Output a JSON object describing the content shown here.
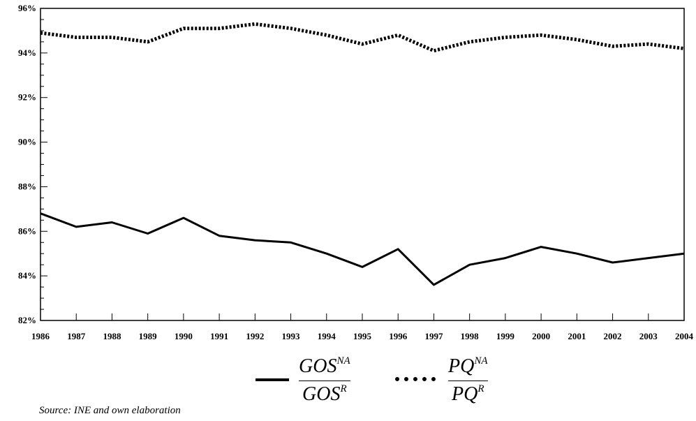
{
  "chart_data": {
    "type": "line",
    "x": [
      "1986",
      "1987",
      "1988",
      "1989",
      "1990",
      "1991",
      "1992",
      "1993",
      "1994",
      "1995",
      "1996",
      "1997",
      "1998",
      "1999",
      "2000",
      "2001",
      "2002",
      "2003",
      "2004"
    ],
    "yticks": [
      "82%",
      "84%",
      "86%",
      "88%",
      "90%",
      "92%",
      "94%",
      "96%"
    ],
    "ylim": [
      82,
      96
    ],
    "series": [
      {
        "name": "GOS",
        "style": "solid",
        "values": [
          86.8,
          86.2,
          86.4,
          85.9,
          86.6,
          85.8,
          85.6,
          85.5,
          85.0,
          84.4,
          85.2,
          83.6,
          84.5,
          84.8,
          85.3,
          85.0,
          84.6,
          84.8,
          85.0
        ]
      },
      {
        "name": "PQ",
        "style": "dotted",
        "values": [
          94.9,
          94.7,
          94.7,
          94.5,
          95.1,
          95.1,
          95.3,
          95.1,
          94.8,
          94.4,
          94.8,
          94.1,
          94.5,
          94.7,
          94.8,
          94.6,
          94.3,
          94.4,
          94.2
        ]
      }
    ],
    "grid": false
  },
  "legend": {
    "gos": {
      "num_base": "GOS",
      "num_sup": "NA",
      "den_base": "GOS",
      "den_sup": "R"
    },
    "pq": {
      "num_base": "PQ",
      "num_sup": "NA",
      "den_base": "PQ",
      "den_sup": "R"
    }
  },
  "source": "Source: INE and own elaboration",
  "colors": {
    "line": "#000000",
    "background": "#ffffff"
  }
}
